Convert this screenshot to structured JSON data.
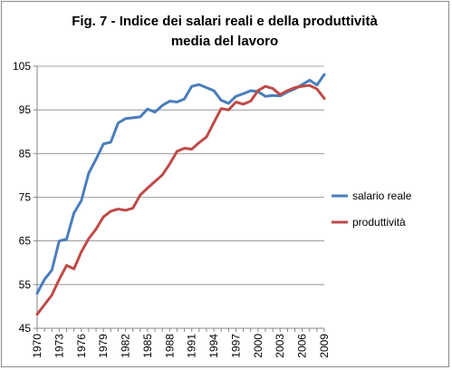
{
  "chart_data": {
    "type": "line",
    "title_lines": [
      "Fig. 7 - Indice dei salari reali e della produttività",
      "media del lavoro"
    ],
    "xlabel": "",
    "ylabel": "",
    "ylim": [
      45,
      105
    ],
    "yticks": [
      45,
      55,
      65,
      75,
      85,
      95,
      105
    ],
    "x": [
      1970,
      1971,
      1972,
      1973,
      1974,
      1975,
      1976,
      1977,
      1978,
      1979,
      1980,
      1981,
      1982,
      1983,
      1984,
      1985,
      1986,
      1987,
      1988,
      1989,
      1990,
      1991,
      1992,
      1993,
      1994,
      1995,
      1996,
      1997,
      1998,
      1999,
      2000,
      2001,
      2002,
      2003,
      2004,
      2005,
      2006,
      2007,
      2008,
      2009
    ],
    "xtick_labels": [
      "1970",
      "1973",
      "1976",
      "1979",
      "1982",
      "1985",
      "1988",
      "1991",
      "1994",
      "1997",
      "2000",
      "2003",
      "2006",
      "2009"
    ],
    "grid": "horizontal",
    "legend_position": "right",
    "series": [
      {
        "name": "salario reale",
        "color": "#4a7ebb",
        "values": [
          53.0,
          56.2,
          58.3,
          65.0,
          65.4,
          71.4,
          74.2,
          80.5,
          83.7,
          87.2,
          87.6,
          92.0,
          93.0,
          93.2,
          93.4,
          95.2,
          94.5,
          96.0,
          97.0,
          96.8,
          97.5,
          100.4,
          100.8,
          100.1,
          99.4,
          97.2,
          96.5,
          98.1,
          98.7,
          99.4,
          99.2,
          98.1,
          98.3,
          98.2,
          99.1,
          99.8,
          100.8,
          101.8,
          100.7,
          103.1
        ]
      },
      {
        "name": "produttività",
        "color": "#be4b48",
        "values": [
          48.2,
          50.4,
          52.6,
          56.2,
          59.4,
          58.6,
          62.5,
          65.5,
          67.7,
          70.5,
          71.8,
          72.3,
          72.0,
          72.5,
          75.5,
          77.1,
          78.6,
          80.1,
          82.6,
          85.5,
          86.2,
          86.0,
          87.5,
          88.8,
          92.1,
          95.3,
          95.0,
          96.8,
          96.3,
          97.0,
          99.4,
          100.4,
          99.9,
          98.5,
          99.4,
          100.1,
          100.4,
          100.6,
          99.8,
          97.6
        ]
      }
    ]
  }
}
